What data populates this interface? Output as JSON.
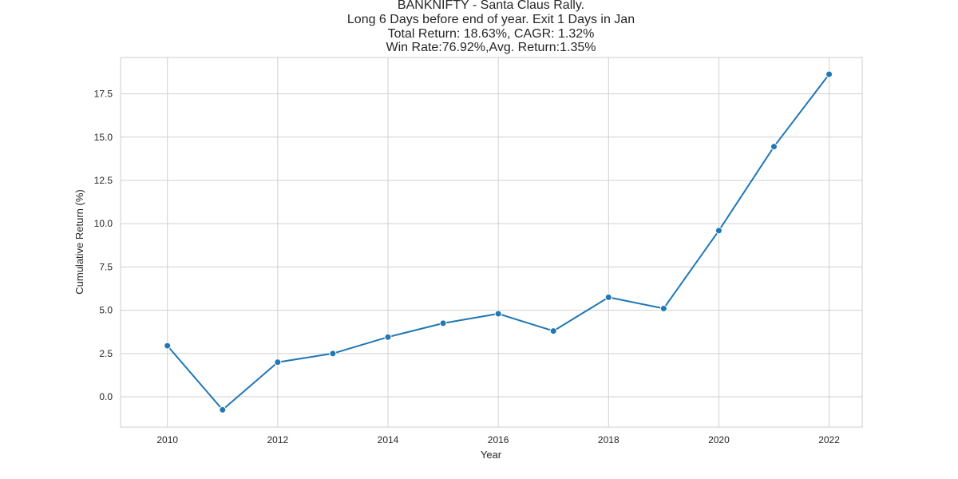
{
  "chart_data": {
    "type": "line",
    "title_lines": [
      "BANKNIFTY - Santa Claus Rally.",
      "Long 6 Days before end of year. Exit 1 Days in Jan",
      "Total Return: 18.63%, CAGR: 1.32%",
      "Win Rate:76.92%,Avg. Return:1.35%"
    ],
    "xlabel": "Year",
    "ylabel": "Cumulative Return (%)",
    "x": [
      2010,
      2011,
      2012,
      2013,
      2014,
      2015,
      2016,
      2017,
      2018,
      2019,
      2020,
      2021,
      2022
    ],
    "series": [
      {
        "values": [
          2.95,
          -0.75,
          2.0,
          2.5,
          3.45,
          4.25,
          4.8,
          3.8,
          5.75,
          5.1,
          9.6,
          14.45,
          18.63
        ],
        "color": "#1f77b4"
      }
    ],
    "xlim": [
      2009.15,
      2022.6
    ],
    "ylim": [
      -1.75,
      19.6
    ],
    "xticks": [
      2010,
      2012,
      2014,
      2016,
      2018,
      2020,
      2022
    ],
    "yticks": [
      0.0,
      2.5,
      5.0,
      7.5,
      10.0,
      12.5,
      15.0,
      17.5
    ],
    "ytick_labels": [
      "0.0",
      "2.5",
      "5.0",
      "7.5",
      "10.0",
      "12.5",
      "15.0",
      "17.5"
    ],
    "grid": true,
    "style": "seaborn-whitegrid"
  }
}
